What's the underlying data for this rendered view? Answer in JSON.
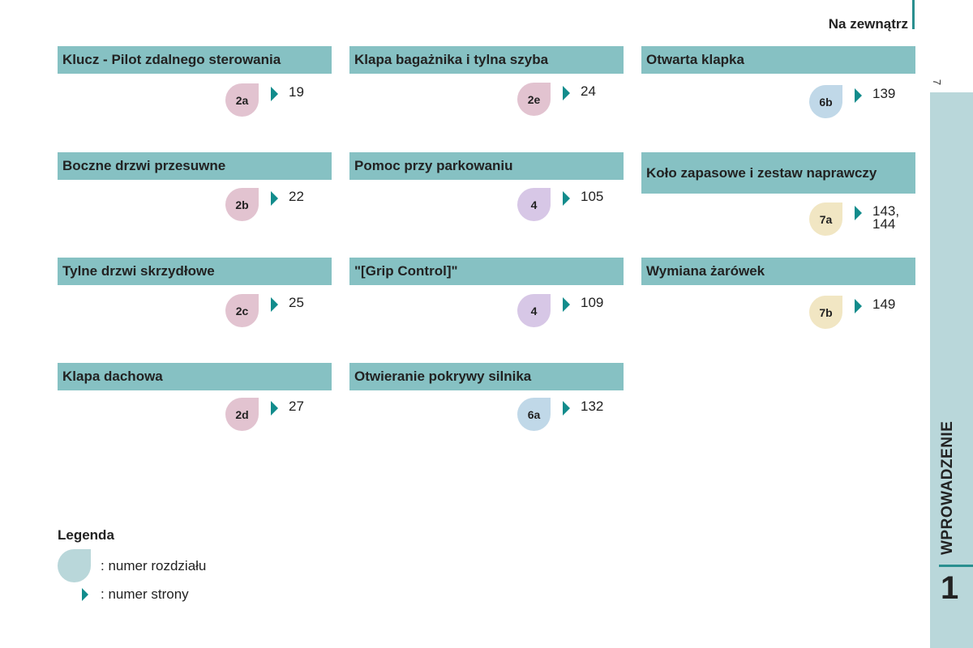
{
  "header": {
    "title": "Na zewnątrz",
    "page_number": "7"
  },
  "sidebar": {
    "label": "WPROWADZENIE",
    "chapter": "1"
  },
  "colors": {
    "teal_header": "#86c1c3",
    "arrow": "#128c8c",
    "badge_pink": "#e2c3d0",
    "badge_purple": "#d7c7e6",
    "badge_blue": "#c0d8e8",
    "badge_yellow": "#f1e6c3",
    "legend_badge": "#b9d7da"
  },
  "sections": [
    {
      "title": "Klucz - Pilot zdalnego sterowania",
      "badge": "2a",
      "pages": "19",
      "badge_color": "pink"
    },
    {
      "title": "Boczne drzwi przesuwne",
      "badge": "2b",
      "pages": "22",
      "badge_color": "pink"
    },
    {
      "title": "Tylne drzwi skrzydłowe",
      "badge": "2c",
      "pages": "25",
      "badge_color": "pink"
    },
    {
      "title": "Klapa dachowa",
      "badge": "2d",
      "pages": "27",
      "badge_color": "pink"
    },
    {
      "title": "Klapa bagażnika i tylna szyba",
      "badge": "2e",
      "pages": "24",
      "badge_color": "pink"
    },
    {
      "title": "Pomoc przy parkowaniu",
      "badge": "4",
      "pages": "105",
      "badge_color": "purple"
    },
    {
      "title": "\"[Grip Control]\"",
      "badge": "4",
      "pages": "109",
      "badge_color": "purple"
    },
    {
      "title": "Otwieranie pokrywy silnika",
      "badge": "6a",
      "pages": "132",
      "badge_color": "blue"
    },
    {
      "title": "Otwarta klapka",
      "badge": "6b",
      "pages": "139",
      "badge_color": "blue"
    },
    {
      "title": "Koło zapasowe i zestaw naprawczy",
      "badge": "7a",
      "pages": "143,\n144",
      "badge_color": "yellow"
    },
    {
      "title": "Wymiana żarówek",
      "badge": "7b",
      "pages": "149",
      "badge_color": "yellow"
    }
  ],
  "legend": {
    "title": "Legenda",
    "chapter_label": ": numer rozdziału",
    "page_label": ": numer strony"
  }
}
